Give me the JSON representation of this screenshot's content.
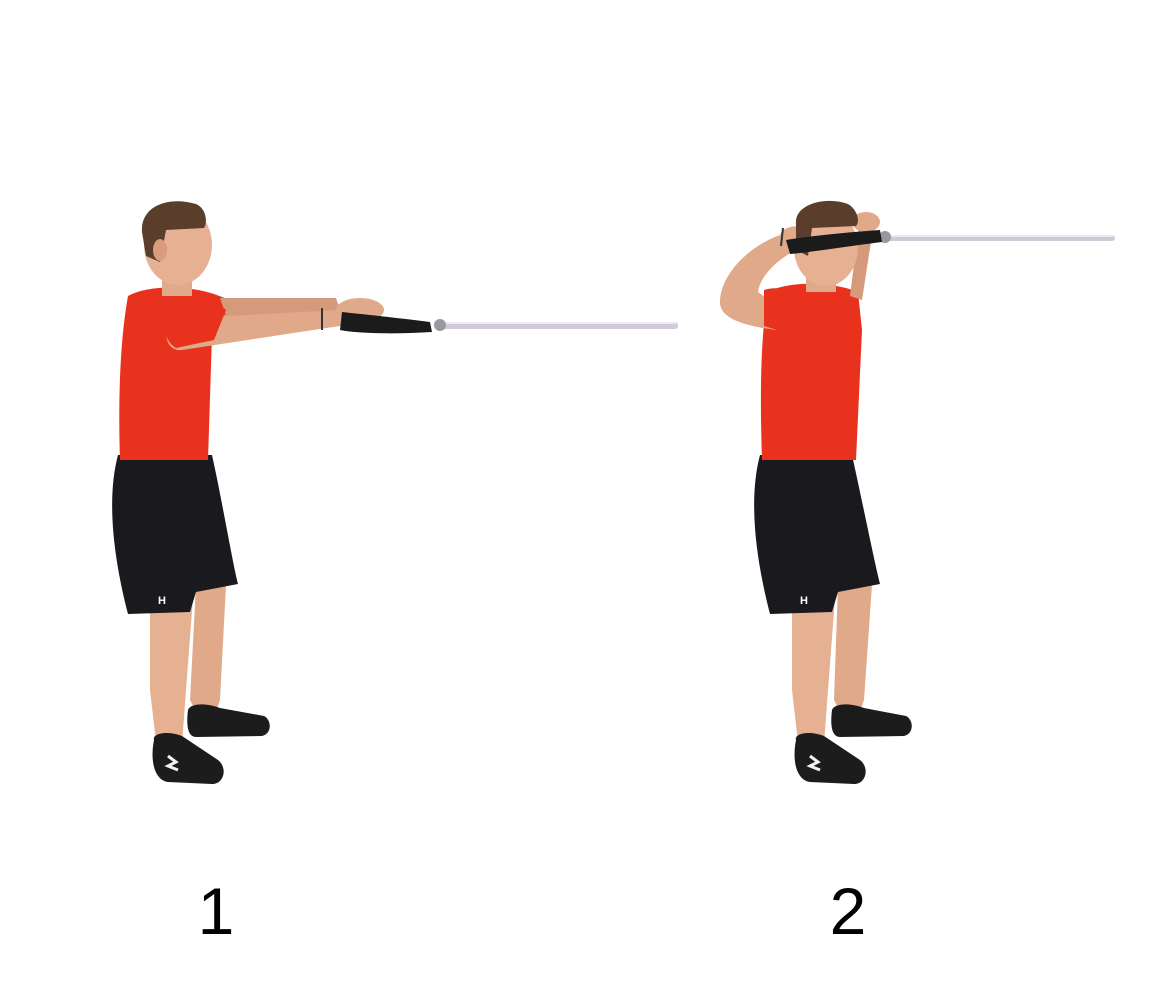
{
  "steps": [
    {
      "label": "1"
    },
    {
      "label": "2"
    }
  ],
  "colors": {
    "background": "#ffffff",
    "shirt": "#e8321e",
    "shorts": "#1a1a1e",
    "skin": "#e0a98a",
    "hair": "#5a3e2b",
    "shoe": "#1c1c1c",
    "rope": "#1b1b1b",
    "cable_bar": "#cfc9d8",
    "label_text": "#000000"
  }
}
